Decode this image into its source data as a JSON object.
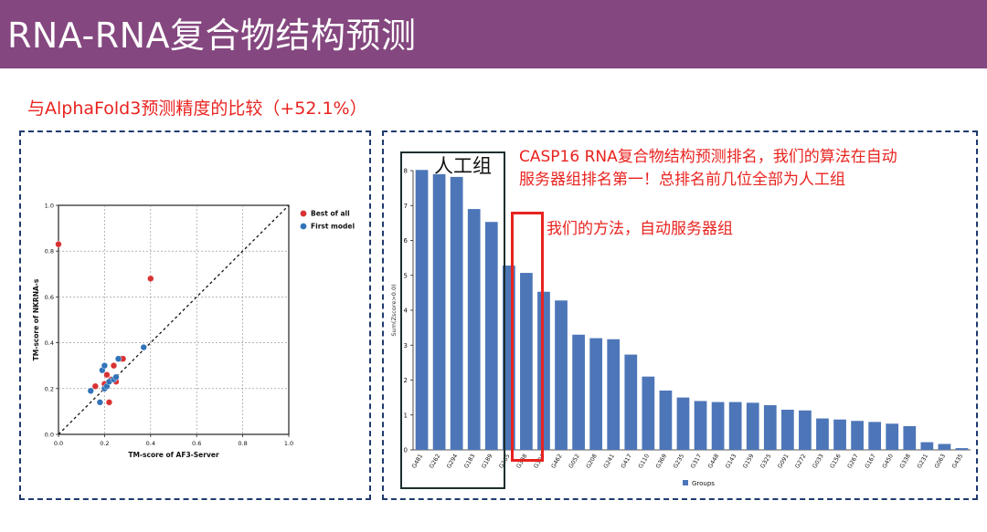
{
  "title": "RNA-RNA复合物结构预测",
  "subtitle": "与AlphaFold3预测精度的比较（+52.1%）",
  "colors": {
    "title_bar": "#84477f",
    "accent_red": "#e8231f",
    "bar_blue": "#4d76b8",
    "scatter_red": "#d93233",
    "scatter_blue": "#3274b8"
  },
  "annotations": {
    "human_group": "人工组",
    "main_line1": "CASP16 RNA复合物结构预测排名，我们的算法在自动",
    "main_line2": "服务器组排名第一！总排名前几位全部为人工组",
    "our_method": "我们的方法，自动服务器组"
  },
  "chart_data": [
    {
      "type": "scatter",
      "xlabel": "TM-score of AF3-Server",
      "ylabel": "TM-score of NKRNA-s",
      "xlim": [
        0,
        1
      ],
      "ylim": [
        0,
        1
      ],
      "xticks": [
        "0.0",
        "0.2",
        "0.4",
        "0.6",
        "0.8",
        "1.0"
      ],
      "yticks": [
        "0.0",
        "0.2",
        "0.4",
        "0.6",
        "0.8",
        "1.0"
      ],
      "grid": true,
      "diagonal": true,
      "legend_position": "top-right",
      "series": [
        {
          "name": "Best of all",
          "points": [
            [
              0.0,
              0.83
            ],
            [
              0.4,
              0.68
            ],
            [
              0.16,
              0.21
            ],
            [
              0.2,
              0.22
            ],
            [
              0.21,
              0.26
            ],
            [
              0.22,
              0.14
            ],
            [
              0.23,
              0.24
            ],
            [
              0.24,
              0.3
            ],
            [
              0.25,
              0.23
            ],
            [
              0.27,
              0.33
            ],
            [
              0.28,
              0.33
            ]
          ]
        },
        {
          "name": "First model",
          "points": [
            [
              0.14,
              0.19
            ],
            [
              0.18,
              0.14
            ],
            [
              0.19,
              0.28
            ],
            [
              0.2,
              0.3
            ],
            [
              0.2,
              0.2
            ],
            [
              0.21,
              0.21
            ],
            [
              0.22,
              0.23
            ],
            [
              0.24,
              0.24
            ],
            [
              0.25,
              0.25
            ],
            [
              0.26,
              0.33
            ],
            [
              0.37,
              0.38
            ]
          ]
        }
      ]
    },
    {
      "type": "bar",
      "ylabel": "Sum(Zscore>0.0)",
      "ylim": [
        0,
        8
      ],
      "yticks": [
        "0",
        "1",
        "2",
        "3",
        "4",
        "5",
        "6",
        "7",
        "8"
      ],
      "legend": "Groups",
      "categories": [
        "G481",
        "G262",
        "G294",
        "G183",
        "G189",
        "G165",
        "G338",
        "G304",
        "G462",
        "G052",
        "G208",
        "G241",
        "G417",
        "G110",
        "G369",
        "G235",
        "G317",
        "G448",
        "G143",
        "G159",
        "G325",
        "G091",
        "G272",
        "G033",
        "G156",
        "G267",
        "G167",
        "G450",
        "G338",
        "G231",
        "G063",
        "G435"
      ],
      "values": [
        8.02,
        7.9,
        7.82,
        6.9,
        6.53,
        5.28,
        5.07,
        4.53,
        4.28,
        3.3,
        3.2,
        3.17,
        2.73,
        2.1,
        1.7,
        1.5,
        1.4,
        1.37,
        1.37,
        1.35,
        1.28,
        1.15,
        1.13,
        0.9,
        0.87,
        0.83,
        0.8,
        0.75,
        0.68,
        0.22,
        0.17,
        0.05
      ]
    }
  ]
}
